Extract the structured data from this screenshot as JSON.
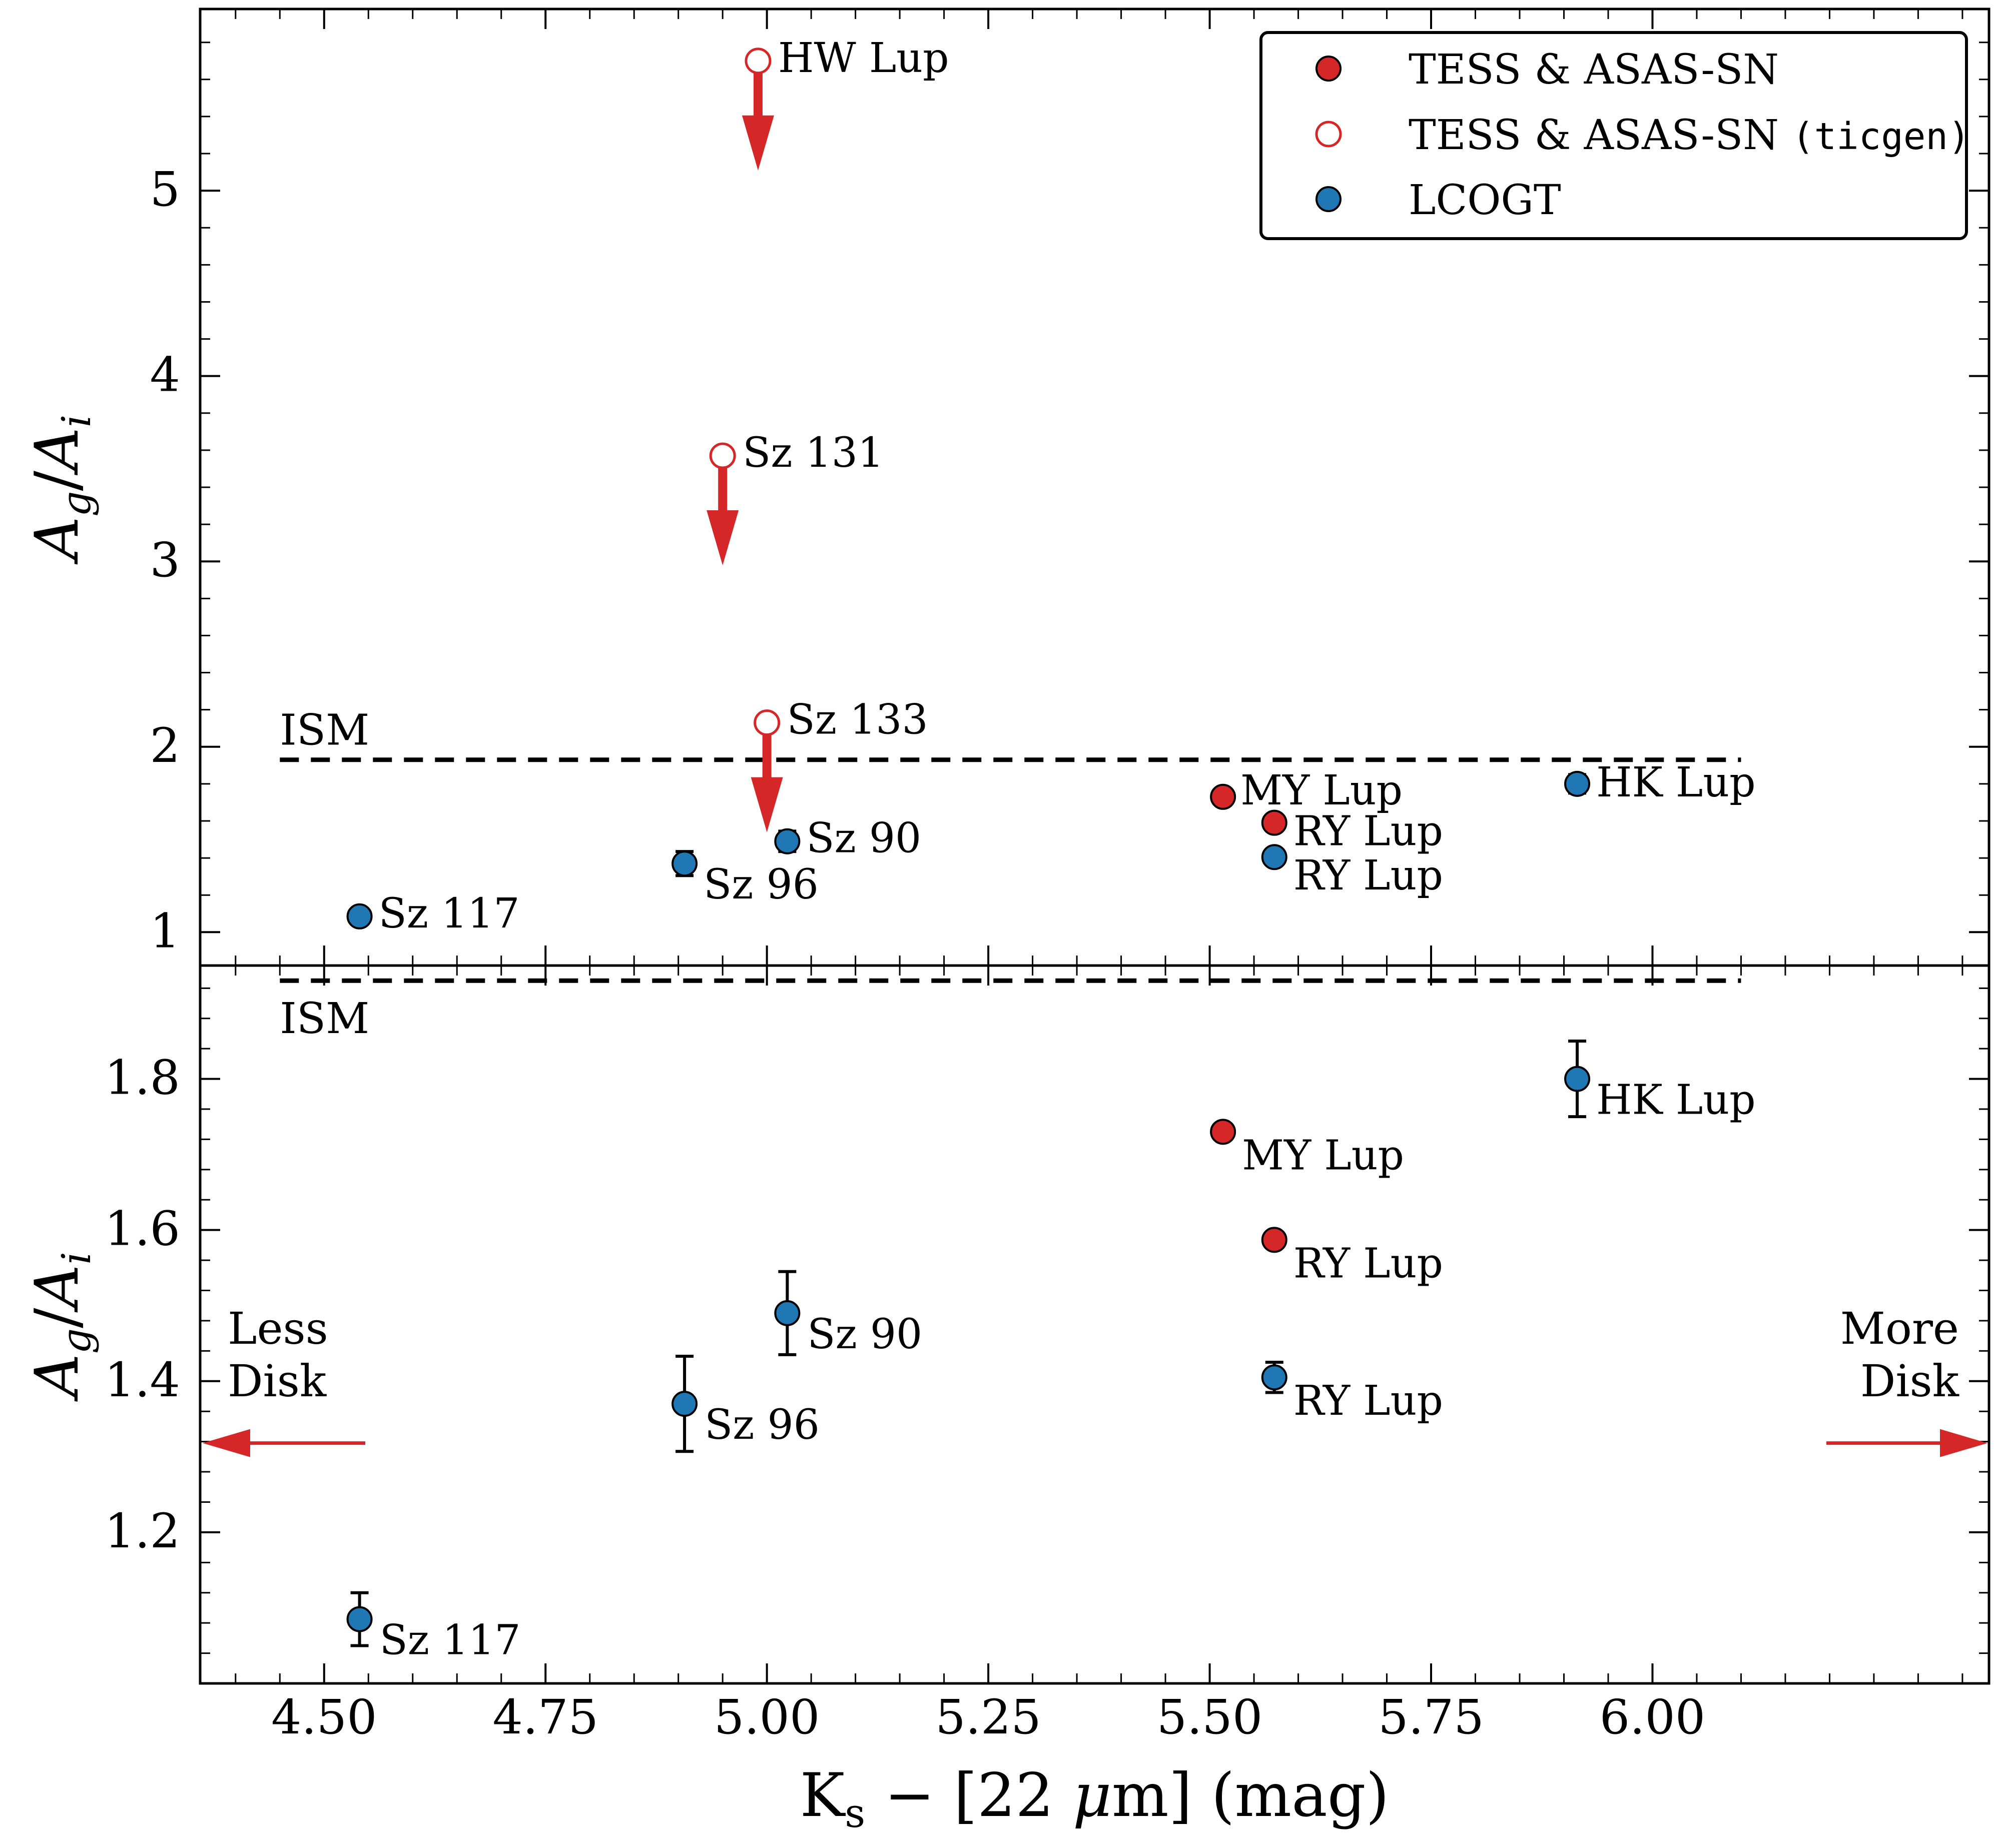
{
  "chart_data": {
    "type": "scatter",
    "xlabel": "Ks − [22 μm] (mag)",
    "xlim": [
      4.36,
      6.38
    ],
    "xticks": [
      "4.50",
      "4.75",
      "5.00",
      "5.25",
      "5.50",
      "5.75",
      "6.00"
    ],
    "xtick_values": [
      4.5,
      4.75,
      5.0,
      5.25,
      5.5,
      5.75,
      6.0
    ],
    "colors": {
      "tess": "#d62728",
      "lcogt": "#1f77b4",
      "arrow": "#d62728"
    },
    "legend": {
      "placement": "top-right",
      "entries": [
        {
          "label": "TESS & ASAS-SN",
          "style": "filled-red"
        },
        {
          "label": "TESS & ASAS-SN ",
          "label_mono": "(ticgen)",
          "style": "open-red"
        },
        {
          "label": "LCOGT",
          "style": "filled-blue"
        }
      ]
    },
    "panels": [
      {
        "name": "top",
        "ylabel": "Ag/Ai",
        "ylim": [
          0.82,
          5.98
        ],
        "yticks": [
          "1",
          "2",
          "3",
          "4",
          "5"
        ],
        "ytick_values": [
          1,
          2,
          3,
          4,
          5
        ],
        "ism": {
          "label": "ISM",
          "y": 1.93,
          "x_range": [
            4.45,
            6.1
          ]
        },
        "series": [
          {
            "name": "TESS & ASAS-SN",
            "points": [
              {
                "x": 5.515,
                "y": 1.73,
                "label": "MY Lup"
              },
              {
                "x": 5.573,
                "y": 1.59,
                "label": "RY Lup"
              }
            ]
          },
          {
            "name": "TESS & ASAS-SN (ticgen)",
            "upper_limits": true,
            "points": [
              {
                "x": 4.99,
                "y": 5.7,
                "label": "HW Lup"
              },
              {
                "x": 4.95,
                "y": 3.57,
                "label": "Sz 131"
              },
              {
                "x": 5.0,
                "y": 2.13,
                "label": "Sz 133"
              }
            ]
          },
          {
            "name": "LCOGT",
            "points": [
              {
                "x": 4.54,
                "y": 1.085,
                "err": 0.035,
                "label": "Sz 117"
              },
              {
                "x": 4.907,
                "y": 1.37,
                "err": 0.065,
                "label": "Sz 96"
              },
              {
                "x": 5.023,
                "y": 1.49,
                "err": 0.055,
                "label": "Sz 90"
              },
              {
                "x": 5.573,
                "y": 1.405,
                "err": 0.02,
                "label": "RY Lup"
              },
              {
                "x": 5.915,
                "y": 1.8,
                "err": 0.05,
                "label": "HK Lup"
              }
            ]
          }
        ]
      },
      {
        "name": "bottom",
        "ylabel": "Ag/Ai",
        "ylim": [
          1.0,
          1.95
        ],
        "yticks": [
          "1.2",
          "1.4",
          "1.6",
          "1.8"
        ],
        "ytick_values": [
          1.2,
          1.4,
          1.6,
          1.8
        ],
        "ism": {
          "label": "ISM",
          "y": 1.93,
          "x_range": [
            4.45,
            6.1
          ]
        },
        "series": [
          {
            "name": "TESS & ASAS-SN",
            "points": [
              {
                "x": 5.515,
                "y": 1.73,
                "err": 0.008,
                "label": "MY Lup"
              },
              {
                "x": 5.573,
                "y": 1.587,
                "err": 0.005,
                "label": "RY Lup"
              }
            ]
          },
          {
            "name": "LCOGT",
            "points": [
              {
                "x": 4.54,
                "y": 1.085,
                "err": 0.035,
                "label": "Sz 117"
              },
              {
                "x": 4.907,
                "y": 1.37,
                "err": 0.063,
                "label": "Sz 96"
              },
              {
                "x": 5.023,
                "y": 1.49,
                "err": 0.055,
                "label": "Sz 90"
              },
              {
                "x": 5.573,
                "y": 1.405,
                "err": 0.02,
                "label": "RY Lup"
              },
              {
                "x": 5.915,
                "y": 1.8,
                "err": 0.05,
                "label": "HK Lup"
              }
            ]
          }
        ],
        "annotations": {
          "less_disk": [
            "Less",
            "Disk"
          ],
          "more_disk": [
            "More",
            "Disk"
          ]
        }
      }
    ]
  }
}
